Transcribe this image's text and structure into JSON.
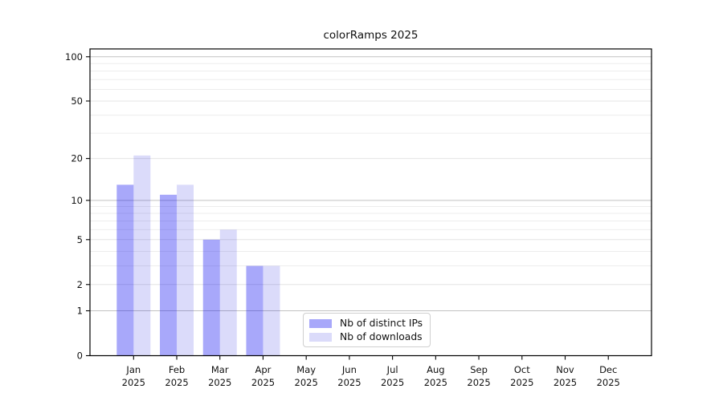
{
  "chart_data": {
    "type": "bar",
    "title": "colorRamps 2025",
    "categories": [
      "Jan",
      "Feb",
      "Mar",
      "Apr",
      "May",
      "Jun",
      "Jul",
      "Aug",
      "Sep",
      "Oct",
      "Nov",
      "Dec"
    ],
    "x_tick_year": "2025",
    "series": [
      {
        "name": "Nb of distinct IPs",
        "color": "#a8a8f6",
        "fill": "rgba(0,0,240,0.34)",
        "values": [
          13,
          11,
          5,
          3,
          0,
          0,
          0,
          0,
          0,
          0,
          0,
          0
        ]
      },
      {
        "name": "Nb of downloads",
        "color": "#dbdbf9",
        "fill": "rgba(0,0,220,0.14)",
        "values": [
          21,
          13,
          6,
          3,
          0,
          0,
          0,
          0,
          0,
          0,
          0,
          0
        ]
      }
    ],
    "y_axis": {
      "scale": "log1p",
      "ylim": [
        0,
        113
      ],
      "major_ticks": [
        0,
        1,
        2,
        5,
        10,
        20,
        50,
        100
      ],
      "minor_ticks": [
        3,
        4,
        6,
        7,
        8,
        9,
        30,
        40,
        60,
        70,
        80,
        90
      ],
      "decade_gridlines": [
        1,
        10,
        100
      ]
    },
    "grid": {
      "on": true,
      "minor_color": "#ededed",
      "major_color": "#e4e4e4",
      "decade_color": "#c2c2c2"
    },
    "legend": {
      "position": "lower center",
      "border_color": "#cfcfcf"
    },
    "axis_color": "#000000",
    "text_color": "#111111"
  }
}
